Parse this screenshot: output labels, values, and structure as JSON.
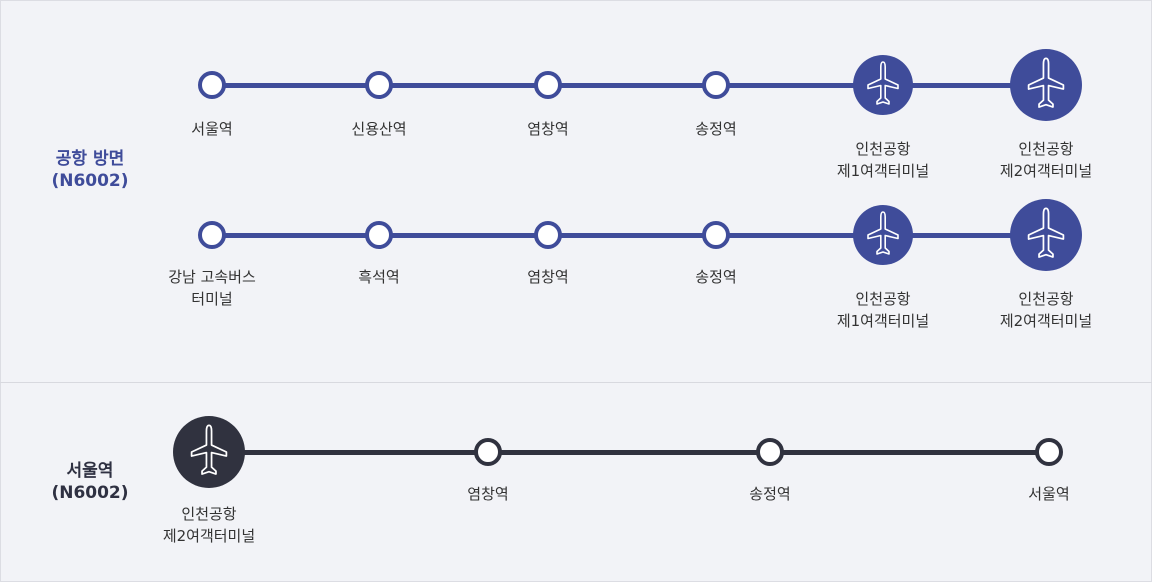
{
  "sections": [
    {
      "title_line1": "공항 방면",
      "title_line2": "(N6002)"
    },
    {
      "title_line1": "서울역",
      "title_line2": "(N6002)"
    }
  ],
  "routes": [
    {
      "stops": [
        {
          "line1": "서울역",
          "line2": "",
          "icon": "circle-stop-icon"
        },
        {
          "line1": "신용산역",
          "line2": "",
          "icon": "circle-stop-icon"
        },
        {
          "line1": "염창역",
          "line2": "",
          "icon": "circle-stop-icon"
        },
        {
          "line1": "송정역",
          "line2": "",
          "icon": "circle-stop-icon"
        },
        {
          "line1": "인천공항",
          "line2": "제1여객터미널",
          "icon": "airplane-icon"
        },
        {
          "line1": "인천공항",
          "line2": "제2여객터미널",
          "icon": "airplane-icon"
        }
      ]
    },
    {
      "stops": [
        {
          "line1": "강남 고속버스",
          "line2": "터미널",
          "icon": "circle-stop-icon"
        },
        {
          "line1": "흑석역",
          "line2": "",
          "icon": "circle-stop-icon"
        },
        {
          "line1": "염창역",
          "line2": "",
          "icon": "circle-stop-icon"
        },
        {
          "line1": "송정역",
          "line2": "",
          "icon": "circle-stop-icon"
        },
        {
          "line1": "인천공항",
          "line2": "제1여객터미널",
          "icon": "airplane-icon"
        },
        {
          "line1": "인천공항",
          "line2": "제2여객터미널",
          "icon": "airplane-icon"
        }
      ]
    },
    {
      "stops": [
        {
          "line1": "인천공항",
          "line2": "제2여객터미널",
          "icon": "airplane-icon"
        },
        {
          "line1": "염창역",
          "line2": "",
          "icon": "circle-stop-icon"
        },
        {
          "line1": "송정역",
          "line2": "",
          "icon": "circle-stop-icon"
        },
        {
          "line1": "서울역",
          "line2": "",
          "icon": "circle-stop-icon"
        }
      ]
    }
  ],
  "colors": {
    "airport_route": "#3f4c9a",
    "seoul_route": "#30323f",
    "background": "#f2f3f7"
  }
}
